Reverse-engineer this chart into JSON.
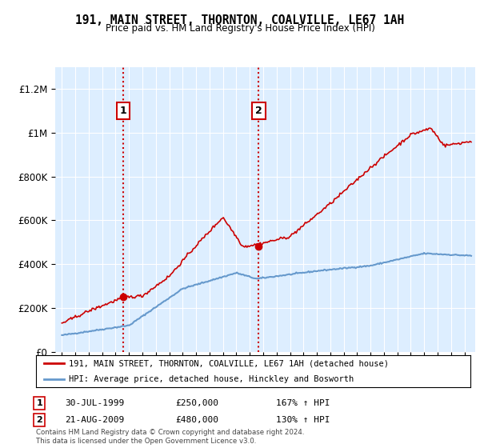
{
  "title": "191, MAIN STREET, THORNTON, COALVILLE, LE67 1AH",
  "subtitle": "Price paid vs. HM Land Registry's House Price Index (HPI)",
  "legend_line1": "191, MAIN STREET, THORNTON, COALVILLE, LE67 1AH (detached house)",
  "legend_line2": "HPI: Average price, detached house, Hinckley and Bosworth",
  "annotation1_label": "1",
  "annotation1_date": "30-JUL-1999",
  "annotation1_price": 250000,
  "annotation1_hpi": "167% ↑ HPI",
  "annotation2_label": "2",
  "annotation2_date": "21-AUG-2009",
  "annotation2_price": 480000,
  "annotation2_hpi": "130% ↑ HPI",
  "footer": "Contains HM Land Registry data © Crown copyright and database right 2024.\nThis data is licensed under the Open Government Licence v3.0.",
  "red_color": "#cc0000",
  "blue_color": "#6699cc",
  "background_color": "#ffffff",
  "plot_bg_color": "#ddeeff",
  "annotation_box_color": "#cc0000",
  "ylim": [
    0,
    1300000
  ],
  "yticks": [
    0,
    200000,
    400000,
    600000,
    800000,
    1000000,
    1200000
  ],
  "ytick_labels": [
    "£0",
    "£200K",
    "£400K",
    "£600K",
    "£800K",
    "£1M",
    "£1.2M"
  ]
}
